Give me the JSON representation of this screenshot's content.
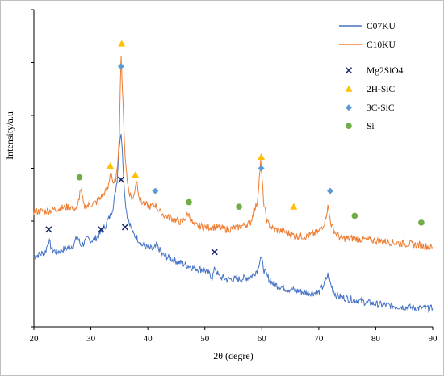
{
  "chart_data": {
    "type": "line",
    "title": "",
    "xlabel": "2θ (degre)",
    "ylabel": "Intensity/a.u",
    "xlim": [
      20,
      90
    ],
    "xticks": [
      20,
      30,
      40,
      50,
      60,
      70,
      80,
      90
    ],
    "xtick_labels": [
      "20",
      "30",
      "40",
      "50",
      "60",
      "70",
      "80",
      "90"
    ],
    "y_tick_labels_shown": false,
    "grid": false,
    "legend_position": "top-right",
    "series": [
      {
        "name": "C07KU",
        "color": "#4472C4",
        "x": [
          20,
          21,
          22,
          22.6,
          23.2,
          24,
          25,
          26,
          27,
          27.6,
          28.2,
          28.8,
          29.5,
          30,
          30.8,
          31.6,
          32.2,
          32.8,
          33.4,
          34,
          34.6,
          35.0,
          35.3,
          35.6,
          36.0,
          36.4,
          36.8,
          37.4,
          38.2,
          39,
          40,
          41,
          41.6,
          42.5,
          44,
          46,
          48,
          50,
          51.3,
          51.8,
          52.5,
          54,
          56,
          58,
          59.2,
          59.8,
          60.4,
          61,
          62,
          64,
          66,
          68,
          70,
          71.0,
          71.6,
          72.2,
          73,
          74,
          76,
          78,
          80,
          82,
          84,
          86,
          88,
          90
        ],
        "values": [
          3.1,
          3.2,
          3.3,
          3.8,
          3.4,
          3.3,
          3.4,
          3.5,
          3.6,
          4.0,
          3.6,
          3.7,
          3.9,
          3.8,
          3.9,
          4.1,
          4.3,
          4.6,
          4.9,
          5.4,
          6.5,
          8.1,
          8.6,
          7.4,
          5.6,
          4.9,
          4.6,
          4.1,
          3.9,
          3.6,
          3.5,
          3.4,
          3.6,
          3.2,
          3.0,
          2.8,
          2.6,
          2.5,
          2.2,
          2.6,
          2.2,
          2.1,
          2.1,
          2.2,
          2.5,
          3.1,
          2.5,
          2.2,
          1.9,
          1.7,
          1.6,
          1.5,
          1.5,
          1.9,
          2.3,
          1.8,
          1.4,
          1.3,
          1.2,
          1.1,
          1.0,
          0.95,
          0.9,
          0.85,
          0.82,
          0.8
        ]
      },
      {
        "name": "C10KU",
        "color": "#ED7D31",
        "x": [
          20,
          22,
          24,
          26,
          27.6,
          28.2,
          28.8,
          30,
          31,
          32,
          33,
          33.5,
          34,
          34.6,
          35.0,
          35.3,
          35.6,
          36.0,
          36.4,
          36.8,
          37.4,
          38.0,
          38.6,
          39.5,
          40.5,
          41.3,
          42,
          43,
          44,
          46,
          47.1,
          48,
          50,
          52,
          54,
          56,
          58,
          59.2,
          59.8,
          60.4,
          61,
          62,
          64,
          66,
          68,
          70,
          71.0,
          71.6,
          72.2,
          73,
          74,
          76,
          78,
          80,
          82,
          84,
          86,
          88,
          90
        ],
        "values": [
          5.1,
          5.1,
          5.2,
          5.3,
          5.2,
          6.1,
          5.3,
          5.4,
          5.5,
          5.8,
          6.1,
          6.9,
          6.2,
          6.8,
          8.6,
          12.1,
          10.0,
          7.6,
          6.4,
          5.9,
          5.6,
          6.5,
          5.6,
          5.4,
          5.3,
          5.4,
          5.1,
          4.9,
          4.8,
          4.6,
          5.0,
          4.5,
          4.4,
          4.4,
          4.3,
          4.4,
          4.6,
          5.5,
          7.3,
          5.3,
          4.6,
          4.3,
          4.2,
          4.0,
          4.0,
          4.2,
          4.6,
          5.3,
          4.5,
          4.1,
          3.9,
          3.9,
          3.85,
          3.8,
          3.75,
          3.7,
          3.65,
          3.6,
          3.5
        ]
      }
    ],
    "markers": [
      {
        "name": "Mg2SiO4",
        "symbol": "x",
        "color": "#1F2D6B",
        "points": [
          [
            22.6,
            4.3
          ],
          [
            31.8,
            4.3
          ],
          [
            35.3,
            6.5
          ],
          [
            36.0,
            4.4
          ],
          [
            51.7,
            3.3
          ]
        ]
      },
      {
        "name": "2H-SiC",
        "symbol": "triangle",
        "color": "#FFC000",
        "points": [
          [
            35.4,
            12.5
          ],
          [
            33.4,
            7.1
          ],
          [
            37.8,
            6.7
          ],
          [
            59.9,
            7.5
          ],
          [
            65.6,
            5.3
          ]
        ]
      },
      {
        "name": "3C-SiC",
        "symbol": "diamond",
        "color": "#5B9BD5",
        "points": [
          [
            35.3,
            11.5
          ],
          [
            41.3,
            6.0
          ],
          [
            59.9,
            7.0
          ],
          [
            72.0,
            6.0
          ]
        ]
      },
      {
        "name": "Si",
        "symbol": "circle",
        "color": "#70AD47",
        "points": [
          [
            28.0,
            6.6
          ],
          [
            47.2,
            5.5
          ],
          [
            56.0,
            5.3
          ],
          [
            76.3,
            4.9
          ],
          [
            88.0,
            4.6
          ]
        ]
      }
    ],
    "ylim": [
      0,
      14
    ]
  }
}
